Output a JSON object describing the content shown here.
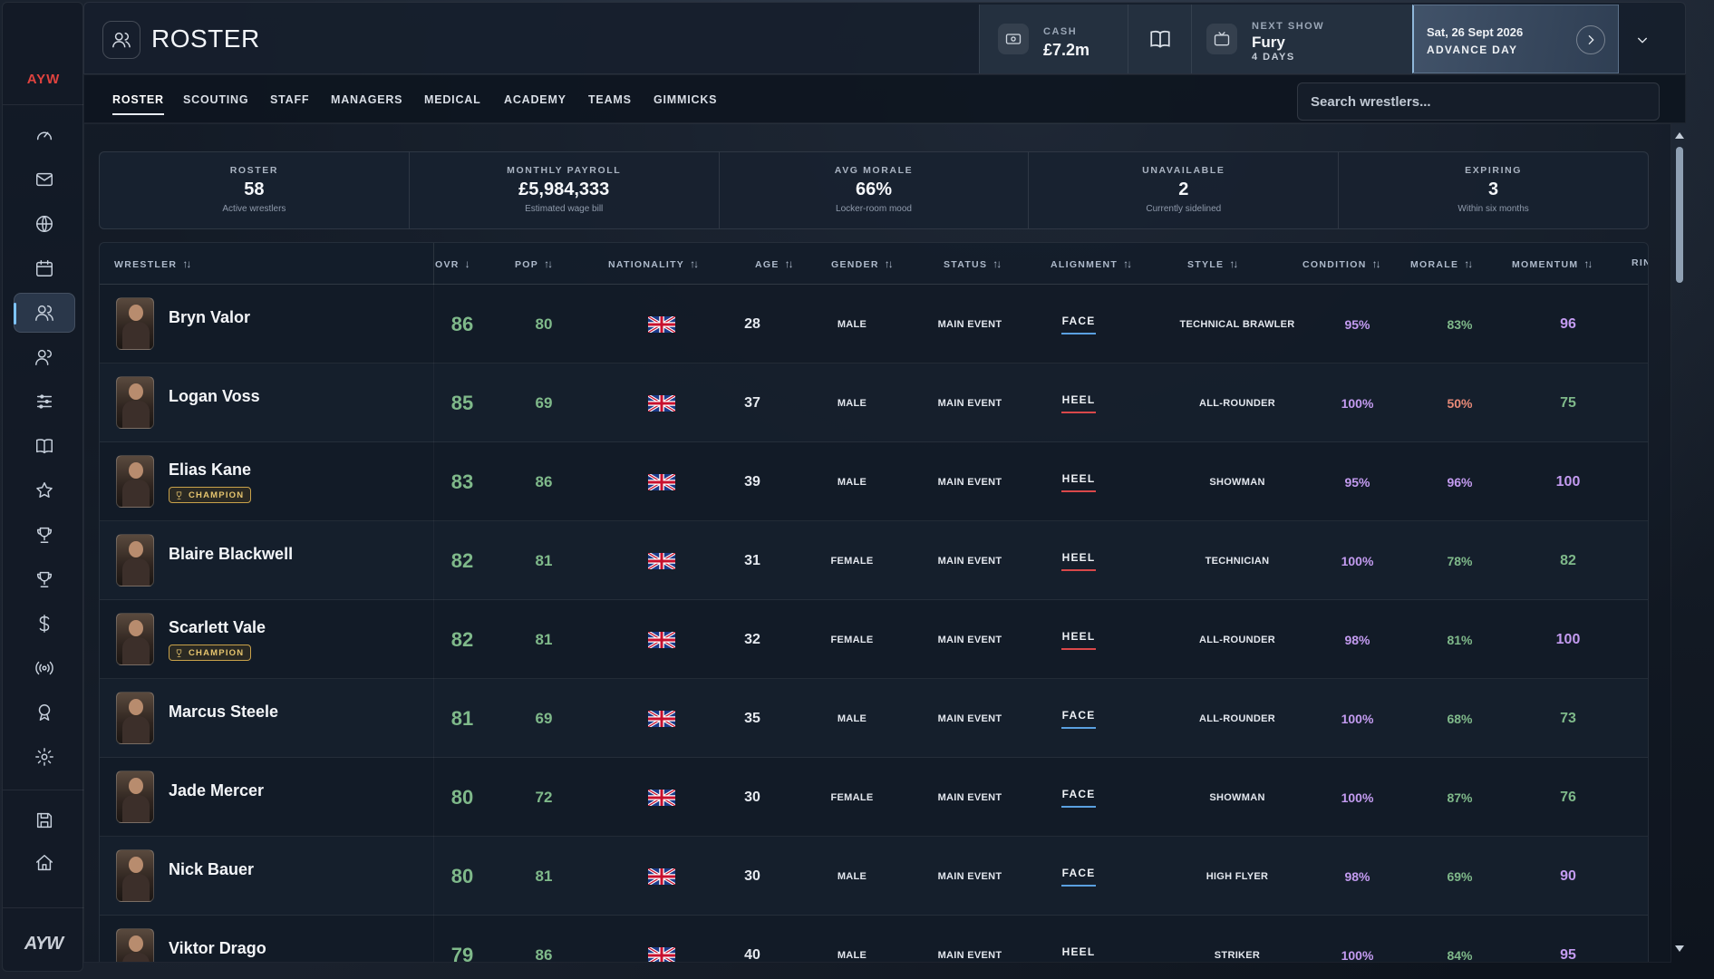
{
  "app": {
    "brand": "AYW",
    "logo_text": "AYW"
  },
  "header": {
    "title": "ROSTER",
    "cash": {
      "label": "CASH",
      "value": "£7.2m"
    },
    "next_show": {
      "label": "NEXT SHOW",
      "name": "Fury",
      "countdown": "4 DAYS"
    },
    "date": {
      "value": "Sat, 26 Sept 2026",
      "action": "ADVANCE DAY"
    }
  },
  "tabs": [
    {
      "label": "ROSTER",
      "active": true
    },
    {
      "label": "SCOUTING"
    },
    {
      "label": "STAFF"
    },
    {
      "label": "MANAGERS"
    },
    {
      "label": "MEDICAL"
    },
    {
      "label": "ACADEMY"
    },
    {
      "label": "TEAMS"
    },
    {
      "label": "GIMMICKS"
    }
  ],
  "search": {
    "placeholder": "Search wrestlers..."
  },
  "stats": [
    {
      "label": "ROSTER",
      "value": "58",
      "sub": "Active wrestlers"
    },
    {
      "label": "MONTHLY PAYROLL",
      "value": "£5,984,333",
      "sub": "Estimated wage bill"
    },
    {
      "label": "AVG MORALE",
      "value": "66%",
      "sub": "Locker-room mood"
    },
    {
      "label": "UNAVAILABLE",
      "value": "2",
      "sub": "Currently sidelined"
    },
    {
      "label": "EXPIRING",
      "value": "3",
      "sub": "Within six months"
    }
  ],
  "table": {
    "columns": [
      "WRESTLER",
      "OVR",
      "POP",
      "NATIONALITY",
      "AGE",
      "GENDER",
      "STATUS",
      "ALIGNMENT",
      "STYLE",
      "CONDITION",
      "MORALE",
      "MOMENTUM",
      "RIN"
    ],
    "champion_label": "CHAMPION",
    "rows": [
      {
        "name": "Bryn Valor",
        "ovr": "86",
        "pop": "80",
        "age": "28",
        "gender": "MALE",
        "status": "MAIN EVENT",
        "alignment": "FACE",
        "style": "TECHNICAL BRAWLER",
        "condition": "95%",
        "morale": "83%",
        "momentum": "96",
        "champion": false
      },
      {
        "name": "Logan Voss",
        "ovr": "85",
        "pop": "69",
        "age": "37",
        "gender": "MALE",
        "status": "MAIN EVENT",
        "alignment": "HEEL",
        "style": "ALL-ROUNDER",
        "condition": "100%",
        "morale": "50%",
        "momentum": "75",
        "champion": false
      },
      {
        "name": "Elias Kane",
        "ovr": "83",
        "pop": "86",
        "age": "39",
        "gender": "MALE",
        "status": "MAIN EVENT",
        "alignment": "HEEL",
        "style": "SHOWMAN",
        "condition": "95%",
        "morale": "96%",
        "momentum": "100",
        "champion": true
      },
      {
        "name": "Blaire Blackwell",
        "ovr": "82",
        "pop": "81",
        "age": "31",
        "gender": "FEMALE",
        "status": "MAIN EVENT",
        "alignment": "HEEL",
        "style": "TECHNICIAN",
        "condition": "100%",
        "morale": "78%",
        "momentum": "82",
        "champion": false
      },
      {
        "name": "Scarlett Vale",
        "ovr": "82",
        "pop": "81",
        "age": "32",
        "gender": "FEMALE",
        "status": "MAIN EVENT",
        "alignment": "HEEL",
        "style": "ALL-ROUNDER",
        "condition": "98%",
        "morale": "81%",
        "momentum": "100",
        "champion": true
      },
      {
        "name": "Marcus Steele",
        "ovr": "81",
        "pop": "69",
        "age": "35",
        "gender": "MALE",
        "status": "MAIN EVENT",
        "alignment": "FACE",
        "style": "ALL-ROUNDER",
        "condition": "100%",
        "morale": "68%",
        "momentum": "73",
        "champion": false
      },
      {
        "name": "Jade Mercer",
        "ovr": "80",
        "pop": "72",
        "age": "30",
        "gender": "FEMALE",
        "status": "MAIN EVENT",
        "alignment": "FACE",
        "style": "SHOWMAN",
        "condition": "100%",
        "morale": "87%",
        "momentum": "76",
        "champion": false
      },
      {
        "name": "Nick Bauer",
        "ovr": "80",
        "pop": "81",
        "age": "30",
        "gender": "MALE",
        "status": "MAIN EVENT",
        "alignment": "FACE",
        "style": "HIGH FLYER",
        "condition": "98%",
        "morale": "69%",
        "momentum": "90",
        "champion": false
      },
      {
        "name": "Viktor Drago",
        "ovr": "79",
        "pop": "86",
        "age": "40",
        "gender": "MALE",
        "status": "MAIN EVENT",
        "alignment": "HEEL",
        "style": "STRIKER",
        "condition": "100%",
        "morale": "84%",
        "momentum": "95",
        "champion": false
      }
    ]
  },
  "colors": {
    "accent_red": "#e0433f",
    "face": "#5aa0e0",
    "heel": "#d9484a",
    "good": "#7fb98a",
    "warn": "#e88a78",
    "high": "#c39bf0",
    "champion": "#e5c46e"
  }
}
